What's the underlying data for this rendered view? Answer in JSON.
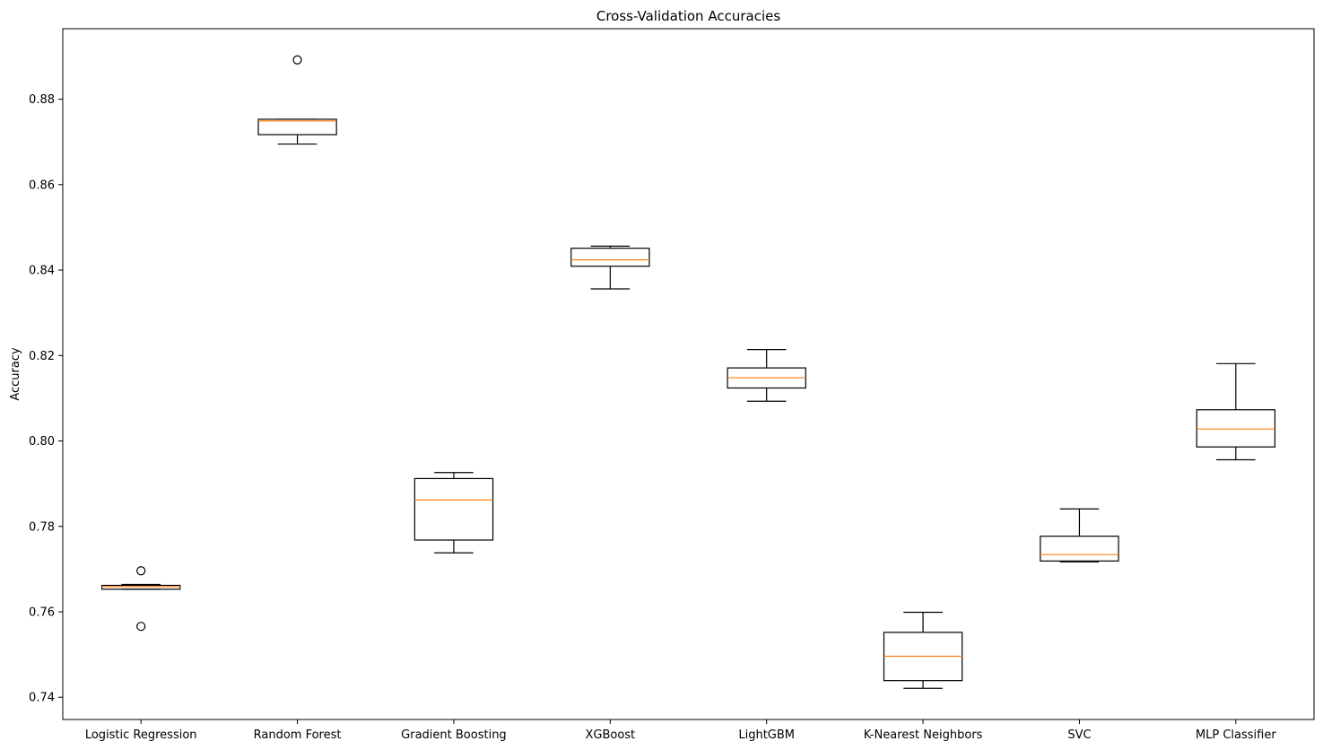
{
  "chart_data": {
    "type": "box",
    "title": "Cross-Validation Accuracies",
    "xlabel": "",
    "ylabel": "Accuracy",
    "ylim": [
      0.7348,
      0.8965
    ],
    "yticks": [
      0.74,
      0.76,
      0.78,
      0.8,
      0.82,
      0.84,
      0.86,
      0.88
    ],
    "ytick_labels": [
      "0.74",
      "0.76",
      "0.78",
      "0.80",
      "0.82",
      "0.84",
      "0.86",
      "0.88"
    ],
    "grid": false,
    "colors": {
      "box": "#000000",
      "median": "#ff7f0e",
      "background": "#ffffff"
    },
    "categories": [
      "Logistic Regression",
      "Random Forest",
      "Gradient Boosting",
      "XGBoost",
      "LightGBM",
      "K-Nearest Neighbors",
      "SVC",
      "MLP Classifier"
    ],
    "boxes": [
      {
        "name": "Logistic Regression",
        "whislo": 0.7653,
        "q1": 0.7653,
        "med": 0.7659,
        "q3": 0.7662,
        "whishi": 0.7664,
        "fliers": [
          0.7696,
          0.7566
        ]
      },
      {
        "name": "Random Forest",
        "whislo": 0.8695,
        "q1": 0.8717,
        "med": 0.8749,
        "q3": 0.8753,
        "whishi": 0.8753,
        "fliers": [
          0.8892
        ]
      },
      {
        "name": "Gradient Boosting",
        "whislo": 0.7738,
        "q1": 0.7768,
        "med": 0.7862,
        "q3": 0.7912,
        "whishi": 0.7926,
        "fliers": []
      },
      {
        "name": "XGBoost",
        "whislo": 0.8356,
        "q1": 0.8409,
        "med": 0.8424,
        "q3": 0.8451,
        "whishi": 0.8456,
        "fliers": []
      },
      {
        "name": "LightGBM",
        "whislo": 0.8093,
        "q1": 0.8124,
        "med": 0.8148,
        "q3": 0.8171,
        "whishi": 0.8214,
        "fliers": []
      },
      {
        "name": "K-Nearest Neighbors",
        "whislo": 0.7421,
        "q1": 0.7439,
        "med": 0.7496,
        "q3": 0.7552,
        "whishi": 0.7599,
        "fliers": []
      },
      {
        "name": "SVC",
        "whislo": 0.7717,
        "q1": 0.7719,
        "med": 0.7734,
        "q3": 0.7777,
        "whishi": 0.7841,
        "fliers": []
      },
      {
        "name": "MLP Classifier",
        "whislo": 0.7956,
        "q1": 0.7986,
        "med": 0.8028,
        "q3": 0.8073,
        "whishi": 0.8181,
        "fliers": []
      }
    ]
  }
}
